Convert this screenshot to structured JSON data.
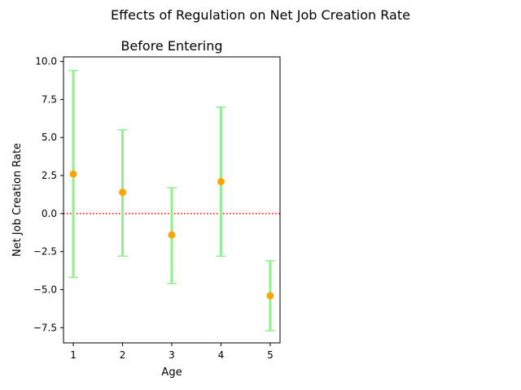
{
  "figure": {
    "suptitle": "Effects of Regulation on Net Job Creation Rate"
  },
  "chart_data": {
    "type": "scatter",
    "title": "Before Entering",
    "xlabel": "Age",
    "ylabel": "Net Job Creation Rate",
    "xlim": [
      0.8,
      5.2
    ],
    "ylim": [
      -8.5,
      10.3
    ],
    "x_ticks": [
      1,
      2,
      3,
      4,
      5
    ],
    "y_ticks": [
      -7.5,
      -5.0,
      -2.5,
      0.0,
      2.5,
      5.0,
      7.5,
      10.0
    ],
    "x_tick_labels": [
      "1",
      "2",
      "3",
      "4",
      "5"
    ],
    "y_tick_labels": [
      "−7.5",
      "−5.0",
      "−2.5",
      "0.0",
      "2.5",
      "5.0",
      "7.5",
      "10.0"
    ],
    "points": [
      {
        "x": 1,
        "y": 2.6,
        "lower": -4.2,
        "upper": 9.4
      },
      {
        "x": 2,
        "y": 1.4,
        "lower": -2.8,
        "upper": 5.5
      },
      {
        "x": 3,
        "y": -1.4,
        "lower": -4.6,
        "upper": 1.7
      },
      {
        "x": 4,
        "y": 2.1,
        "lower": -2.8,
        "upper": 7.0
      },
      {
        "x": 5,
        "y": -5.4,
        "lower": -7.7,
        "upper": -3.1
      }
    ],
    "reference_line": {
      "y": 0,
      "style": "dotted"
    },
    "colors": {
      "point": "#ffa500",
      "errorbar": "#90ee90",
      "reference_line": "#ff0000"
    },
    "grid": false,
    "legend": "none"
  }
}
